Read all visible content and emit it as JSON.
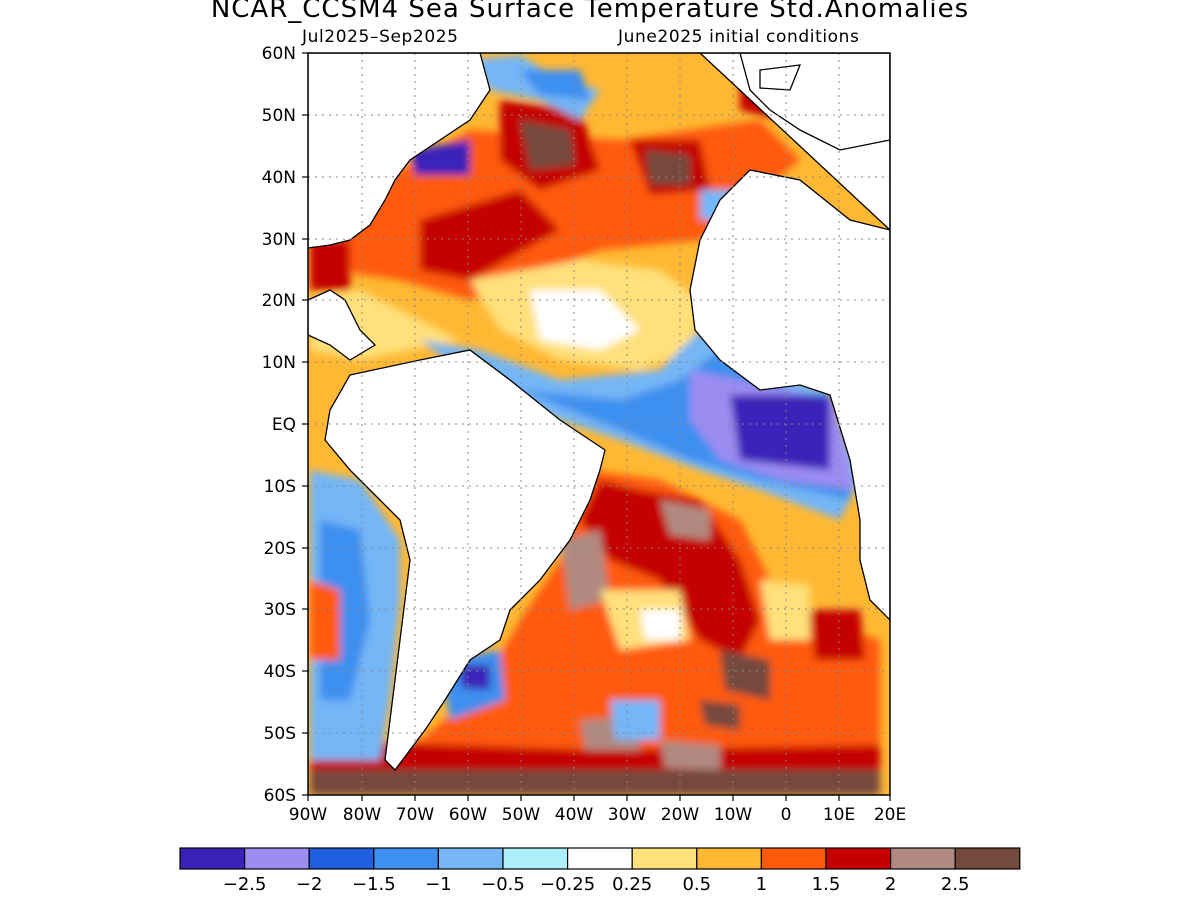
{
  "title": "NCAR_CCSM4 Sea Surface Temperature Std.Anomalies",
  "subtitle_left": "Jul2025–Sep2025",
  "subtitle_right": "June2025 initial conditions",
  "lat_labels": [
    "60N",
    "50N",
    "40N",
    "30N",
    "20N",
    "10N",
    "EQ",
    "10S",
    "20S",
    "30S",
    "40S",
    "50S",
    "60S"
  ],
  "lon_labels": [
    "90W",
    "80W",
    "70W",
    "60W",
    "50W",
    "40W",
    "30W",
    "20W",
    "10W",
    "0",
    "10E",
    "20E"
  ],
  "colorbar": {
    "colors": [
      "#3a22b8",
      "#9b8cf2",
      "#1f5fe0",
      "#3d8ff0",
      "#74b6f6",
      "#aeeefa",
      "#ffffff",
      "#ffe07a",
      "#ffb833",
      "#ff5a0a",
      "#c40000",
      "#b08a80",
      "#744a3c"
    ],
    "labels": [
      "−2.5",
      "−2",
      "−1.5",
      "−1",
      "−0.5",
      "−0.25",
      "0.25",
      "0.5",
      "1",
      "1.5",
      "2",
      "2.5"
    ]
  }
}
